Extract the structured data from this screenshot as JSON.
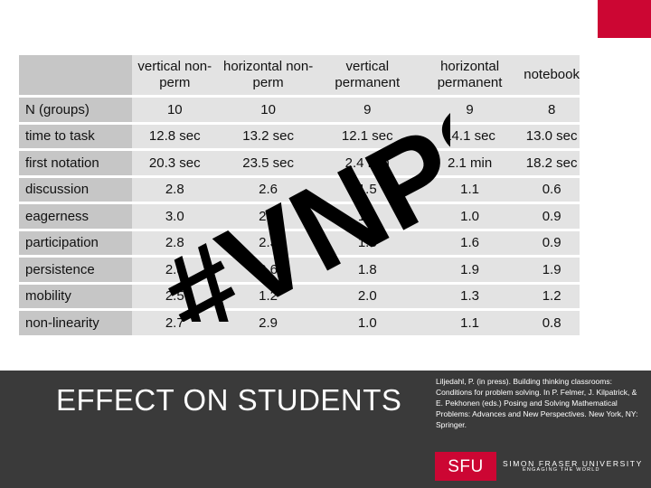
{
  "colors": {
    "accent": "#cc0633",
    "header_fill": "#c6c6c6",
    "cell_fill": "#e3e3e3",
    "footer_fill": "#3a3a3a"
  },
  "table": {
    "columns": [
      "vertical non-perm",
      "horizontal non-perm",
      "vertical permanent",
      "horizontal permanent",
      "notebook"
    ],
    "rows": [
      {
        "label": "N (groups)",
        "values": [
          "10",
          "10",
          "9",
          "9",
          "8"
        ]
      },
      {
        "label": "time to task",
        "values": [
          "12.8 sec",
          "13.2 sec",
          "12.1 sec",
          "14.1 sec",
          "13.0 sec"
        ]
      },
      {
        "label": "first notation",
        "values": [
          "20.3 sec",
          "23.5 sec",
          "2.4 min",
          "2.1 min",
          "18.2 sec"
        ]
      },
      {
        "label": "discussion",
        "values": [
          "2.8",
          "2.6",
          "1.5",
          "1.1",
          "0.6"
        ]
      },
      {
        "label": "eagerness",
        "values": [
          "3.0",
          "2.5",
          "1.2",
          "1.0",
          "0.9"
        ]
      },
      {
        "label": "participation",
        "values": [
          "2.8",
          "2.3",
          "1.8",
          "1.6",
          "0.9"
        ]
      },
      {
        "label": "persistence",
        "values": [
          "2.8",
          "2.6",
          "1.8",
          "1.9",
          "1.9"
        ]
      },
      {
        "label": "mobility",
        "values": [
          "2.5",
          "1.2",
          "2.0",
          "1.3",
          "1.2"
        ]
      },
      {
        "label": "non-linearity",
        "values": [
          "2.7",
          "2.9",
          "1.0",
          "1.1",
          "0.8"
        ]
      }
    ]
  },
  "watermark": {
    "text": "#VNPS"
  },
  "footer": {
    "title": "EFFECT ON STUDENTS",
    "citation": "Liljedahl, P. (in press). Building thinking classrooms: Conditions for problem solving. In P. Felmer, J. Kilpatrick, & E. Pekhonen (eds.) Posing and Solving Mathematical Problems: Advances and New Perspectives. New York, NY: Springer.",
    "logo_abbrev": "SFU",
    "logo_name": "SIMON FRASER UNIVERSITY",
    "logo_tagline": "ENGAGING THE WORLD"
  }
}
